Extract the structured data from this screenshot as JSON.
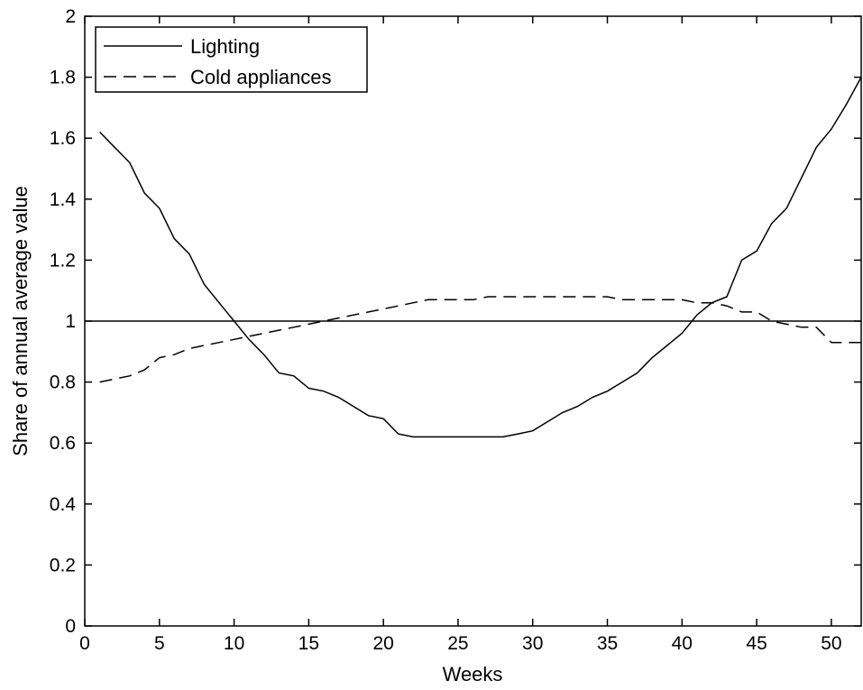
{
  "chart_data": {
    "type": "line",
    "title": "",
    "xlabel": "Weeks",
    "ylabel": "Share of annual average value",
    "xlim": [
      0,
      52
    ],
    "ylim": [
      0,
      2
    ],
    "xticks": [
      0,
      5,
      10,
      15,
      20,
      25,
      30,
      35,
      40,
      45,
      50
    ],
    "yticks": [
      0,
      0.2,
      0.4,
      0.6,
      0.8,
      1,
      1.2,
      1.4,
      1.6,
      1.8,
      2
    ],
    "ytick_labels": [
      "0",
      "0.2",
      "0.4",
      "0.6",
      "0.8",
      "1",
      "1.2",
      "1.4",
      "1.6",
      "1.8",
      "2"
    ],
    "grid": false,
    "legend_position": "top-left",
    "reference_line": {
      "y": 1,
      "style": "solid"
    },
    "series": [
      {
        "name": "Lighting",
        "style": "solid",
        "color": "#000000",
        "x": [
          1,
          2,
          3,
          4,
          5,
          6,
          7,
          8,
          9,
          10,
          11,
          12,
          13,
          14,
          15,
          16,
          17,
          18,
          19,
          20,
          21,
          22,
          23,
          24,
          25,
          26,
          27,
          28,
          29,
          30,
          31,
          32,
          33,
          34,
          35,
          36,
          37,
          38,
          39,
          40,
          41,
          42,
          43,
          44,
          45,
          46,
          47,
          48,
          49,
          50,
          51,
          52
        ],
        "y": [
          1.62,
          1.57,
          1.52,
          1.42,
          1.37,
          1.27,
          1.22,
          1.12,
          1.06,
          1.0,
          0.94,
          0.89,
          0.83,
          0.82,
          0.78,
          0.77,
          0.75,
          0.72,
          0.69,
          0.68,
          0.63,
          0.62,
          0.62,
          0.62,
          0.62,
          0.62,
          0.62,
          0.62,
          0.63,
          0.64,
          0.67,
          0.7,
          0.72,
          0.75,
          0.77,
          0.8,
          0.83,
          0.88,
          0.92,
          0.96,
          1.02,
          1.06,
          1.08,
          1.2,
          1.23,
          1.32,
          1.37,
          1.47,
          1.57,
          1.63,
          1.71,
          1.8
        ]
      },
      {
        "name": "Cold appliances",
        "style": "dashed",
        "color": "#000000",
        "x": [
          1,
          2,
          3,
          4,
          5,
          6,
          7,
          8,
          9,
          10,
          11,
          12,
          13,
          14,
          15,
          16,
          17,
          18,
          19,
          20,
          21,
          22,
          23,
          24,
          25,
          26,
          27,
          28,
          29,
          30,
          31,
          32,
          33,
          34,
          35,
          36,
          37,
          38,
          39,
          40,
          41,
          42,
          43,
          44,
          45,
          46,
          47,
          48,
          49,
          50,
          51,
          52
        ],
        "y": [
          0.8,
          0.81,
          0.82,
          0.84,
          0.88,
          0.89,
          0.91,
          0.92,
          0.93,
          0.94,
          0.95,
          0.96,
          0.97,
          0.98,
          0.99,
          1.0,
          1.01,
          1.02,
          1.03,
          1.04,
          1.05,
          1.06,
          1.07,
          1.07,
          1.07,
          1.07,
          1.08,
          1.08,
          1.08,
          1.08,
          1.08,
          1.08,
          1.08,
          1.08,
          1.08,
          1.07,
          1.07,
          1.07,
          1.07,
          1.07,
          1.06,
          1.06,
          1.05,
          1.03,
          1.03,
          1.0,
          0.99,
          0.98,
          0.98,
          0.93,
          0.93,
          0.93
        ]
      }
    ]
  }
}
